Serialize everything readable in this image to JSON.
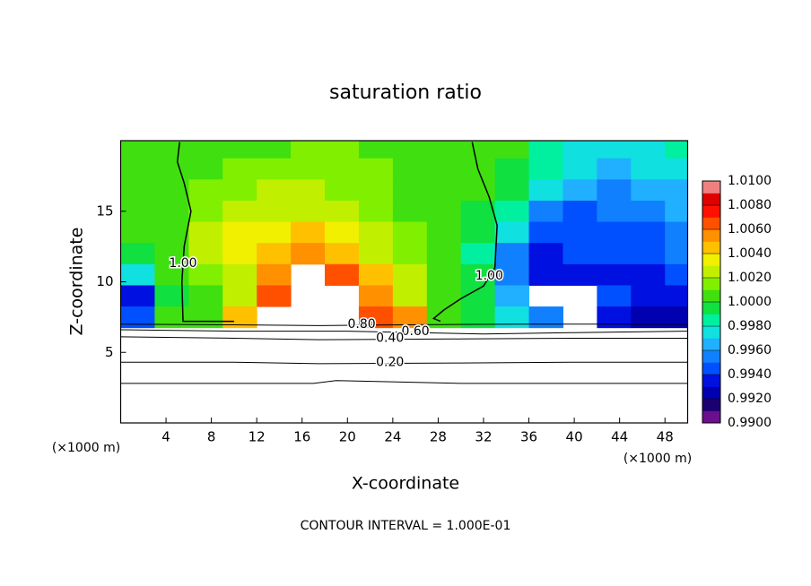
{
  "chart_data": {
    "type": "contour",
    "title": "saturation ratio",
    "x_label": "X-coordinate",
    "y_label": "Z-coordinate",
    "x_unit": "(×1000 m)",
    "y_unit": "(×1000 m)",
    "footer": "CONTOUR INTERVAL = 1.000E-01",
    "xlim": [
      0,
      50
    ],
    "ylim": [
      0,
      20
    ],
    "xticks": [
      4,
      8,
      12,
      16,
      20,
      24,
      28,
      32,
      36,
      40,
      44,
      48
    ],
    "yticks": [
      5,
      10,
      15
    ],
    "x": [
      1.5,
      4.5,
      7.5,
      10.5,
      13.5,
      16.5,
      19.5,
      22.5,
      25.5,
      28.5,
      31.5,
      34.5,
      37.5,
      40.5,
      43.5,
      46.5,
      49.5
    ],
    "z": [
      19.5,
      18,
      16.5,
      15,
      13.5,
      12,
      10.5,
      9,
      7.5
    ],
    "values": [
      [
        1.0005,
        1.0005,
        1.0008,
        1.001,
        1.001,
        1.0012,
        1.0012,
        1.001,
        1.0008,
        1.0005,
        1.0003,
        1.0,
        0.9988,
        0.9978,
        0.9976,
        0.9978,
        0.998
      ],
      [
        1.0005,
        1.0005,
        1.001,
        1.0013,
        1.0015,
        1.0015,
        1.0014,
        1.0012,
        1.0008,
        1.0005,
        1.0002,
        0.9994,
        0.998,
        0.997,
        0.9965,
        0.997,
        0.9972
      ],
      [
        1.0003,
        1.0005,
        1.0012,
        1.0018,
        1.002,
        1.002,
        1.0018,
        1.0014,
        1.0008,
        1.0003,
        1.0,
        0.999,
        0.997,
        0.996,
        0.9955,
        0.996,
        0.9965
      ],
      [
        1.0002,
        1.0003,
        1.0015,
        1.0025,
        1.003,
        1.0028,
        1.0022,
        1.0016,
        1.001,
        1.0003,
        0.9995,
        0.998,
        0.9955,
        0.9948,
        0.995,
        0.995,
        0.996
      ],
      [
        1.0,
        1.0002,
        1.002,
        1.0035,
        1.0038,
        1.004,
        1.0032,
        1.0022,
        1.0012,
        1.0004,
        0.999,
        0.997,
        0.994,
        0.9942,
        0.9945,
        0.9945,
        0.9955
      ],
      [
        0.9998,
        1.0002,
        1.002,
        1.0035,
        1.004,
        1.0055,
        1.0045,
        1.003,
        1.0015,
        1.0005,
        0.9988,
        0.9955,
        0.9935,
        0.994,
        0.994,
        0.994,
        0.995
      ],
      [
        0.997,
        1.0,
        1.0015,
        1.003,
        1.0055,
        null,
        1.006,
        1.004,
        1.002,
        1.0005,
        0.999,
        0.995,
        0.993,
        0.9935,
        0.9935,
        0.9935,
        0.994
      ],
      [
        0.9935,
        0.9995,
        1.001,
        1.003,
        1.0065,
        null,
        null,
        1.0055,
        1.003,
        1.0008,
        0.9995,
        0.996,
        null,
        null,
        0.994,
        0.9935,
        0.993
      ],
      [
        0.9945,
        1.0,
        1.0008,
        1.0045,
        null,
        null,
        null,
        1.0065,
        1.0055,
        1.001,
        0.999,
        0.9975,
        0.995,
        null,
        0.993,
        0.9925,
        0.992
      ]
    ],
    "clim": [
      0.99,
      1.01
    ],
    "colors": [
      "#6a0f8e",
      "#1a0070",
      "#0000b0",
      "#0010e0",
      "#0050ff",
      "#1080ff",
      "#20b0ff",
      "#10e0e0",
      "#00f0a0",
      "#10e040",
      "#40e010",
      "#80f000",
      "#c0f000",
      "#f0f000",
      "#ffc000",
      "#ff9000",
      "#ff5000",
      "#ff1000",
      "#e00000",
      "#f08080"
    ],
    "cticks": [
      {
        "value": 0.99,
        "label": "0.9900"
      },
      {
        "value": 0.992,
        "label": "0.9920"
      },
      {
        "value": 0.994,
        "label": "0.9940"
      },
      {
        "value": 0.996,
        "label": "0.9960"
      },
      {
        "value": 0.998,
        "label": "0.9980"
      },
      {
        "value": 1.0,
        "label": "1.0000"
      },
      {
        "value": 1.002,
        "label": "1.0020"
      },
      {
        "value": 1.004,
        "label": "1.0040"
      },
      {
        "value": 1.006,
        "label": "1.0060"
      },
      {
        "value": 1.008,
        "label": "1.0080"
      },
      {
        "value": 1.01,
        "label": "1.0100"
      }
    ],
    "contours": [
      {
        "label": "1.00",
        "x": [
          5.2,
          5,
          5.6,
          6.2,
          5.6,
          5.4,
          5.5,
          8,
          10
        ],
        "y": [
          19.9,
          18.5,
          17,
          15,
          12.5,
          10,
          7.2,
          7.2,
          7.2
        ]
      },
      {
        "label": "1.00",
        "x": [
          31,
          31.5,
          32.5,
          33.2,
          33,
          32,
          30,
          28.5,
          27.6,
          28.2
        ],
        "y": [
          19.9,
          18,
          16,
          14,
          11,
          9.7,
          8.8,
          8,
          7.4,
          7.2
        ]
      },
      {
        "label": "0.80",
        "x": [
          0,
          10,
          17.5,
          25,
          35,
          50
        ],
        "y": [
          7.0,
          6.95,
          6.9,
          6.95,
          7.0,
          7.0
        ]
      },
      {
        "label": "0.60",
        "x": [
          0,
          10,
          20,
          32,
          40,
          50
        ],
        "y": [
          6.6,
          6.5,
          6.5,
          6.3,
          6.4,
          6.5
        ]
      },
      {
        "label": "0.40",
        "x": [
          0,
          10,
          17.5,
          30,
          40,
          50
        ],
        "y": [
          6.1,
          6.0,
          5.9,
          5.95,
          6.0,
          6.0
        ]
      },
      {
        "label": "0.20",
        "x": [
          0,
          10,
          17.5,
          30,
          40,
          50
        ],
        "y": [
          4.3,
          4.3,
          4.2,
          4.25,
          4.3,
          4.3
        ]
      },
      {
        "x": [
          0,
          10,
          17,
          19,
          30,
          50
        ],
        "y": [
          2.8,
          2.8,
          2.8,
          3.0,
          2.8,
          2.8
        ]
      }
    ]
  }
}
